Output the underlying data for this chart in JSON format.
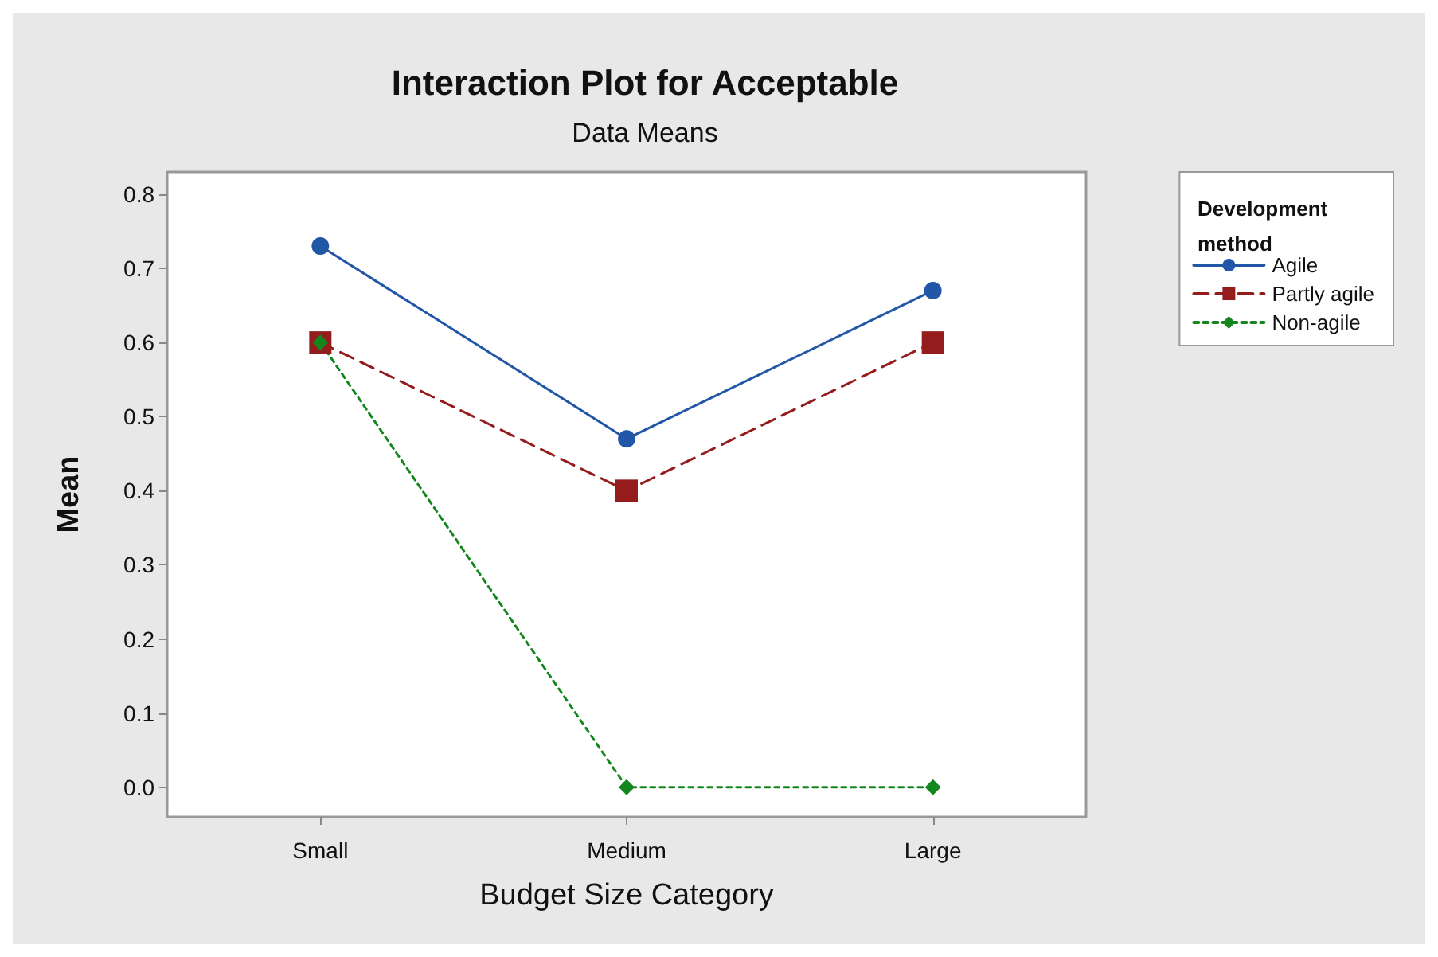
{
  "chart_data": {
    "type": "line",
    "title": "Interaction Plot for Acceptable",
    "subtitle": "Data Means",
    "xlabel": "Budget Size Category",
    "ylabel": "Mean",
    "legend_title": "Development method",
    "legend": "top right",
    "grid": false,
    "categories": [
      "Small",
      "Medium",
      "Large"
    ],
    "ylim": [
      -0.04,
      0.83
    ],
    "yticks": [
      {
        "value": 0,
        "label": "0.0"
      },
      0.1,
      0.2,
      0.3,
      0.4,
      0.5,
      0.6,
      0.7,
      0.8
    ],
    "series": [
      {
        "name": "Agile",
        "color": "#2257a8",
        "values": [
          0.73,
          0.47,
          0.67
        ],
        "marker": "circle",
        "line_style": "solid"
      },
      {
        "name": "Partly agile",
        "color": "#941c1c",
        "values": [
          0.6,
          0.4,
          0.6
        ],
        "marker": "square",
        "line_style": "dashed"
      },
      {
        "name": "Non-agile",
        "color": "#13861e",
        "values": [
          0.6,
          0,
          0
        ],
        "marker": "diamond",
        "line_style": "dotted"
      }
    ]
  }
}
